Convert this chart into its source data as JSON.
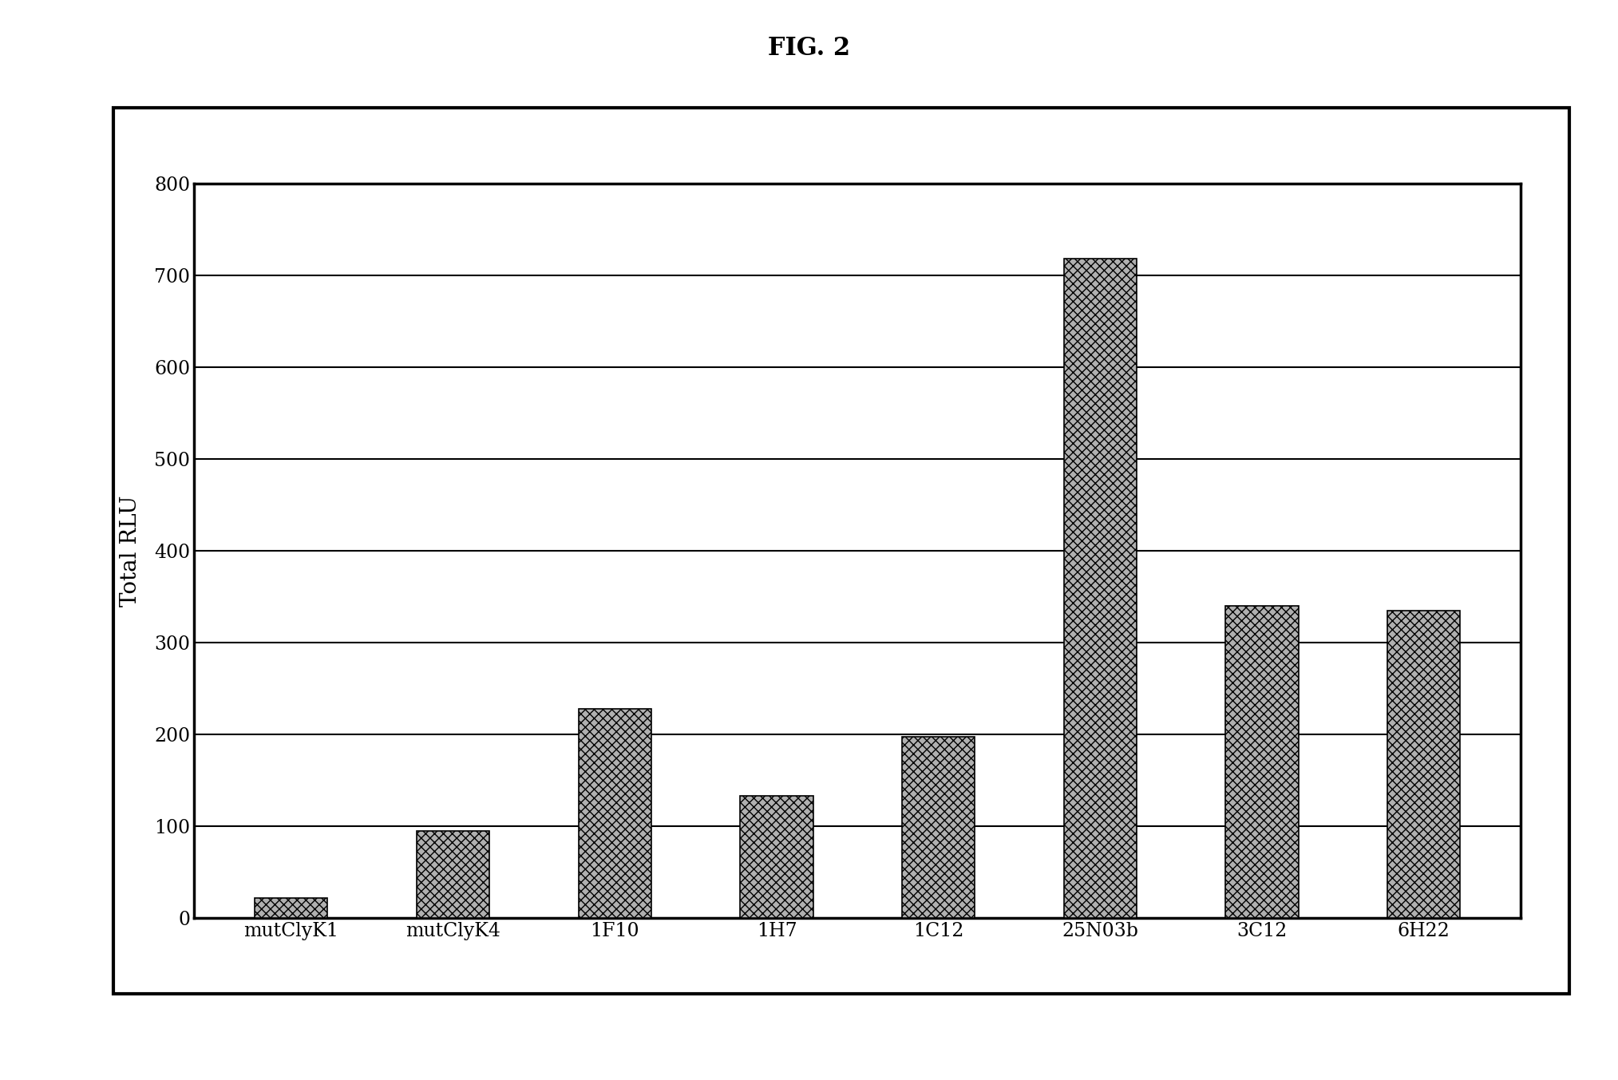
{
  "title": "FIG. 2",
  "ylabel": "Total RLU",
  "categories": [
    "mutClyK1",
    "mutClyK4",
    "1F10",
    "1H7",
    "1C12",
    "25N03b",
    "3C12",
    "6H22"
  ],
  "values": [
    22,
    95,
    228,
    133,
    197,
    718,
    340,
    335
  ],
  "ylim": [
    0,
    800
  ],
  "yticks": [
    0,
    100,
    200,
    300,
    400,
    500,
    600,
    700,
    800
  ],
  "bar_color": "#b0b0b0",
  "bar_hatch": "xxx",
  "background_color": "#ffffff",
  "title_fontsize": 22,
  "ylabel_fontsize": 20,
  "tick_fontsize": 17,
  "bar_edge_color": "#000000",
  "bar_width": 0.45,
  "grid_color": "#000000",
  "grid_linewidth": 1.5,
  "spine_linewidth": 2.5,
  "outer_border_linewidth": 3.0
}
